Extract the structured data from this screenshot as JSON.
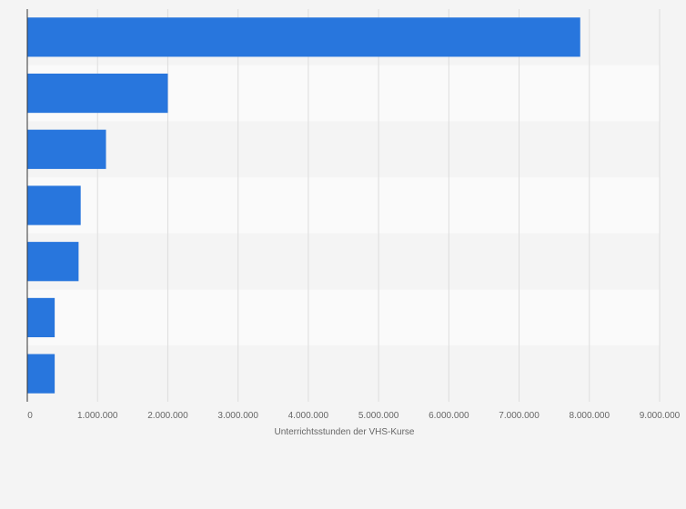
{
  "chart_data": {
    "type": "bar",
    "orientation": "horizontal",
    "categories": [
      "",
      "",
      "",
      "",
      "",
      "",
      ""
    ],
    "values": [
      7870000,
      2000000,
      1120000,
      760000,
      730000,
      390000,
      390000
    ],
    "xlabel": "Unterrichtsstunden der VHS-Kurse",
    "ylabel": "",
    "xlim": [
      0,
      9000000
    ],
    "x_ticks": [
      0,
      1000000,
      2000000,
      3000000,
      4000000,
      5000000,
      6000000,
      7000000,
      8000000,
      9000000
    ],
    "x_tick_labels": [
      "0",
      "1.000.000",
      "2.000.000",
      "3.000.000",
      "4.000.000",
      "5.000.000",
      "6.000.000",
      "7.000.000",
      "8.000.000",
      "9.000.000"
    ],
    "grid": true,
    "colors": {
      "bar": "#2876dd",
      "band_light": "#fafafa",
      "band_dark": "#f4f4f4",
      "gridline": "#dddddd",
      "axis": "#333333",
      "text": "#666666"
    }
  }
}
